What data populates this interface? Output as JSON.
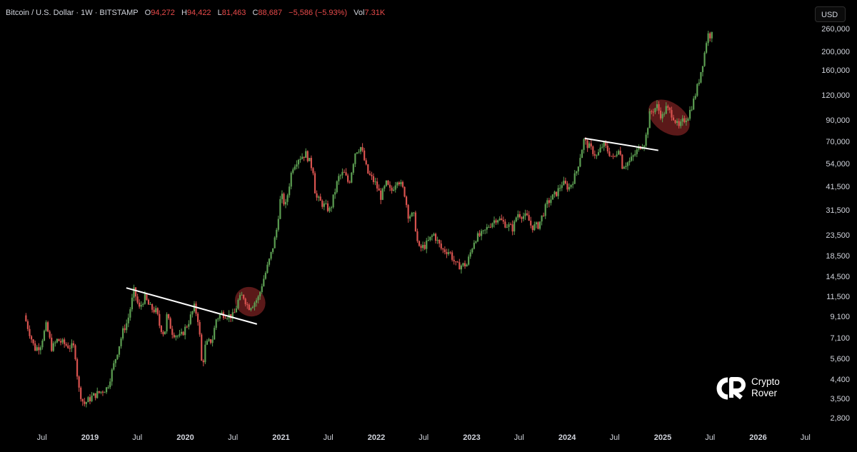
{
  "header": {
    "symbol": "Bitcoin / U.S. Dollar · 1W · BITSTAMP",
    "open_label": "O",
    "open_value": "94,272",
    "high_label": "H",
    "high_value": "94,422",
    "low_label": "L",
    "low_value": "81,463",
    "close_label": "C",
    "close_value": "88,687",
    "change_value": "−5,586 (−5.93%)",
    "vol_label": "Vol",
    "vol_value": "7.31K"
  },
  "currency_button": "USD",
  "watermark": {
    "line1": "Crypto",
    "line2": "Rover"
  },
  "colors": {
    "background": "#000000",
    "up": "#5c9e52",
    "down": "#d9534f",
    "text": "#d1d4dc",
    "value_red": "#e84a4a",
    "trendline": "#ffffff",
    "highlight": "#7a2222"
  },
  "chart_data": {
    "type": "candlestick",
    "title": "Bitcoin / U.S. Dollar · 1W · BITSTAMP",
    "y_scale": "log",
    "ylim": [
      2500,
      290000
    ],
    "xlim": [
      "2018-05-01",
      "2026-09-01"
    ],
    "y_ticks": [
      260000,
      200000,
      160000,
      120000,
      90000,
      70000,
      54000,
      41500,
      31500,
      23500,
      18500,
      14500,
      11500,
      9100,
      7100,
      5600,
      4400,
      3500,
      2800
    ],
    "y_tick_labels": [
      "260,000",
      "200,000",
      "160,000",
      "120,000",
      "90,000",
      "70,000",
      "54,000",
      "41,500",
      "31,500",
      "23,500",
      "18,500",
      "14,500",
      "11,500",
      "9,100",
      "7,100",
      "5,600",
      "4,400",
      "3,500",
      "2,800"
    ],
    "x_ticks": [
      {
        "label": "Jul",
        "date": "2018-07-01",
        "bold": false
      },
      {
        "label": "2019",
        "date": "2019-01-01",
        "bold": true
      },
      {
        "label": "Jul",
        "date": "2019-07-01",
        "bold": false
      },
      {
        "label": "2020",
        "date": "2020-01-01",
        "bold": true
      },
      {
        "label": "Jul",
        "date": "2020-07-01",
        "bold": false
      },
      {
        "label": "2021",
        "date": "2021-01-01",
        "bold": true
      },
      {
        "label": "Jul",
        "date": "2021-07-01",
        "bold": false
      },
      {
        "label": "2022",
        "date": "2022-01-01",
        "bold": true
      },
      {
        "label": "Jul",
        "date": "2022-07-01",
        "bold": false
      },
      {
        "label": "2023",
        "date": "2023-01-01",
        "bold": true
      },
      {
        "label": "Jul",
        "date": "2023-07-01",
        "bold": false
      },
      {
        "label": "2024",
        "date": "2024-01-01",
        "bold": true
      },
      {
        "label": "Jul",
        "date": "2024-07-01",
        "bold": false
      },
      {
        "label": "2025",
        "date": "2025-01-01",
        "bold": true
      },
      {
        "label": "Jul",
        "date": "2025-07-01",
        "bold": false
      },
      {
        "label": "2026",
        "date": "2026-01-01",
        "bold": true
      },
      {
        "label": "Jul",
        "date": "2026-07-01",
        "bold": false
      }
    ],
    "price_path": [
      [
        "2018-05-01",
        9300
      ],
      [
        "2018-06-10",
        6300
      ],
      [
        "2018-07-01",
        6500
      ],
      [
        "2018-07-25",
        8300
      ],
      [
        "2018-08-15",
        6300
      ],
      [
        "2018-09-05",
        7000
      ],
      [
        "2018-10-15",
        6500
      ],
      [
        "2018-11-10",
        6400
      ],
      [
        "2018-11-25",
        4000
      ],
      [
        "2018-12-15",
        3300
      ],
      [
        "2019-01-15",
        3600
      ],
      [
        "2019-02-15",
        3800
      ],
      [
        "2019-03-15",
        4000
      ],
      [
        "2019-04-05",
        5000
      ],
      [
        "2019-05-15",
        7800
      ],
      [
        "2019-06-01",
        8700
      ],
      [
        "2019-06-26",
        12500
      ],
      [
        "2019-07-15",
        10000
      ],
      [
        "2019-08-05",
        11500
      ],
      [
        "2019-08-25",
        10200
      ],
      [
        "2019-09-20",
        9700
      ],
      [
        "2019-10-01",
        8300
      ],
      [
        "2019-10-20",
        7400
      ],
      [
        "2019-10-28",
        9300
      ],
      [
        "2019-11-20",
        7600
      ],
      [
        "2019-12-20",
        7200
      ],
      [
        "2020-01-20",
        8600
      ],
      [
        "2020-02-12",
        10300
      ],
      [
        "2020-02-28",
        8600
      ],
      [
        "2020-03-12",
        5000
      ],
      [
        "2020-03-25",
        6600
      ],
      [
        "2020-04-20",
        7000
      ],
      [
        "2020-05-05",
        8900
      ],
      [
        "2020-05-25",
        9500
      ],
      [
        "2020-06-20",
        9300
      ],
      [
        "2020-07-10",
        9200
      ],
      [
        "2020-07-28",
        11000
      ],
      [
        "2020-08-15",
        11800
      ],
      [
        "2020-09-05",
        10200
      ],
      [
        "2020-09-25",
        10700
      ],
      [
        "2020-10-15",
        11500
      ],
      [
        "2020-10-28",
        13500
      ],
      [
        "2020-11-15",
        16000
      ],
      [
        "2020-12-01",
        19000
      ],
      [
        "2020-12-20",
        24000
      ],
      [
        "2021-01-08",
        38000
      ],
      [
        "2021-01-25",
        33000
      ],
      [
        "2021-02-20",
        52000
      ],
      [
        "2021-03-15",
        58000
      ],
      [
        "2021-04-14",
        61000
      ],
      [
        "2021-05-12",
        50000
      ],
      [
        "2021-05-20",
        37000
      ],
      [
        "2021-06-15",
        34000
      ],
      [
        "2021-07-15",
        31500
      ],
      [
        "2021-08-15",
        46000
      ],
      [
        "2021-09-05",
        49000
      ],
      [
        "2021-09-25",
        43000
      ],
      [
        "2021-10-20",
        63000
      ],
      [
        "2021-11-10",
        66000
      ],
      [
        "2021-12-05",
        49000
      ],
      [
        "2022-01-05",
        43000
      ],
      [
        "2022-01-25",
        37000
      ],
      [
        "2022-02-15",
        43000
      ],
      [
        "2022-03-05",
        39000
      ],
      [
        "2022-03-30",
        46000
      ],
      [
        "2022-04-25",
        39000
      ],
      [
        "2022-05-10",
        30000
      ],
      [
        "2022-06-01",
        29500
      ],
      [
        "2022-06-18",
        20000
      ],
      [
        "2022-07-15",
        21000
      ],
      [
        "2022-08-15",
        24000
      ],
      [
        "2022-09-15",
        20000
      ],
      [
        "2022-10-15",
        19500
      ],
      [
        "2022-11-10",
        16500
      ],
      [
        "2022-12-20",
        16800
      ],
      [
        "2023-01-20",
        22800
      ],
      [
        "2023-02-20",
        24000
      ],
      [
        "2023-03-15",
        26500
      ],
      [
        "2023-04-15",
        29000
      ],
      [
        "2023-05-15",
        27000
      ],
      [
        "2023-06-15",
        25500
      ],
      [
        "2023-07-01",
        30500
      ],
      [
        "2023-08-10",
        29000
      ],
      [
        "2023-08-25",
        26000
      ],
      [
        "2023-09-20",
        26500
      ],
      [
        "2023-10-25",
        34500
      ],
      [
        "2023-12-01",
        39000
      ],
      [
        "2023-12-20",
        43500
      ],
      [
        "2024-01-15",
        41000
      ],
      [
        "2024-02-10",
        48000
      ],
      [
        "2024-03-12",
        71000
      ],
      [
        "2024-04-15",
        63000
      ],
      [
        "2024-05-01",
        59000
      ],
      [
        "2024-05-25",
        68500
      ],
      [
        "2024-07-05",
        57000
      ],
      [
        "2024-07-25",
        67000
      ],
      [
        "2024-08-05",
        53000
      ],
      [
        "2024-09-05",
        56000
      ],
      [
        "2024-10-15",
        67000
      ],
      [
        "2024-11-01",
        70000
      ],
      [
        "2024-11-20",
        98000
      ],
      [
        "2024-12-17",
        106000
      ],
      [
        "2025-01-05",
        93000
      ],
      [
        "2025-01-20",
        104000
      ],
      [
        "2025-02-15",
        96000
      ],
      [
        "2025-03-10",
        82000
      ],
      [
        "2025-03-25",
        88687
      ],
      [
        "2025-04-15",
        95000
      ],
      [
        "2025-05-05",
        112000
      ],
      [
        "2025-05-25",
        140000
      ],
      [
        "2025-06-15",
        190000
      ],
      [
        "2025-06-29",
        250000
      ],
      [
        "2025-07-05",
        235000
      ],
      [
        "2025-07-12",
        252000
      ]
    ],
    "annotations": {
      "trendlines": [
        {
          "x1": "2019-05-20",
          "y1": 12800,
          "x2": "2020-10-01",
          "y2": 8400
        },
        {
          "x1": "2024-03-08",
          "y1": 73000,
          "x2": "2024-12-15",
          "y2": 63500
        }
      ],
      "highlight_ellipses": [
        {
          "center": "2020-09-05",
          "price": 10900,
          "rx": 22,
          "ry": 20,
          "rotation": 35
        },
        {
          "center": "2025-01-25",
          "price": 93000,
          "rx": 32,
          "ry": 21,
          "rotation": 35
        }
      ]
    }
  }
}
